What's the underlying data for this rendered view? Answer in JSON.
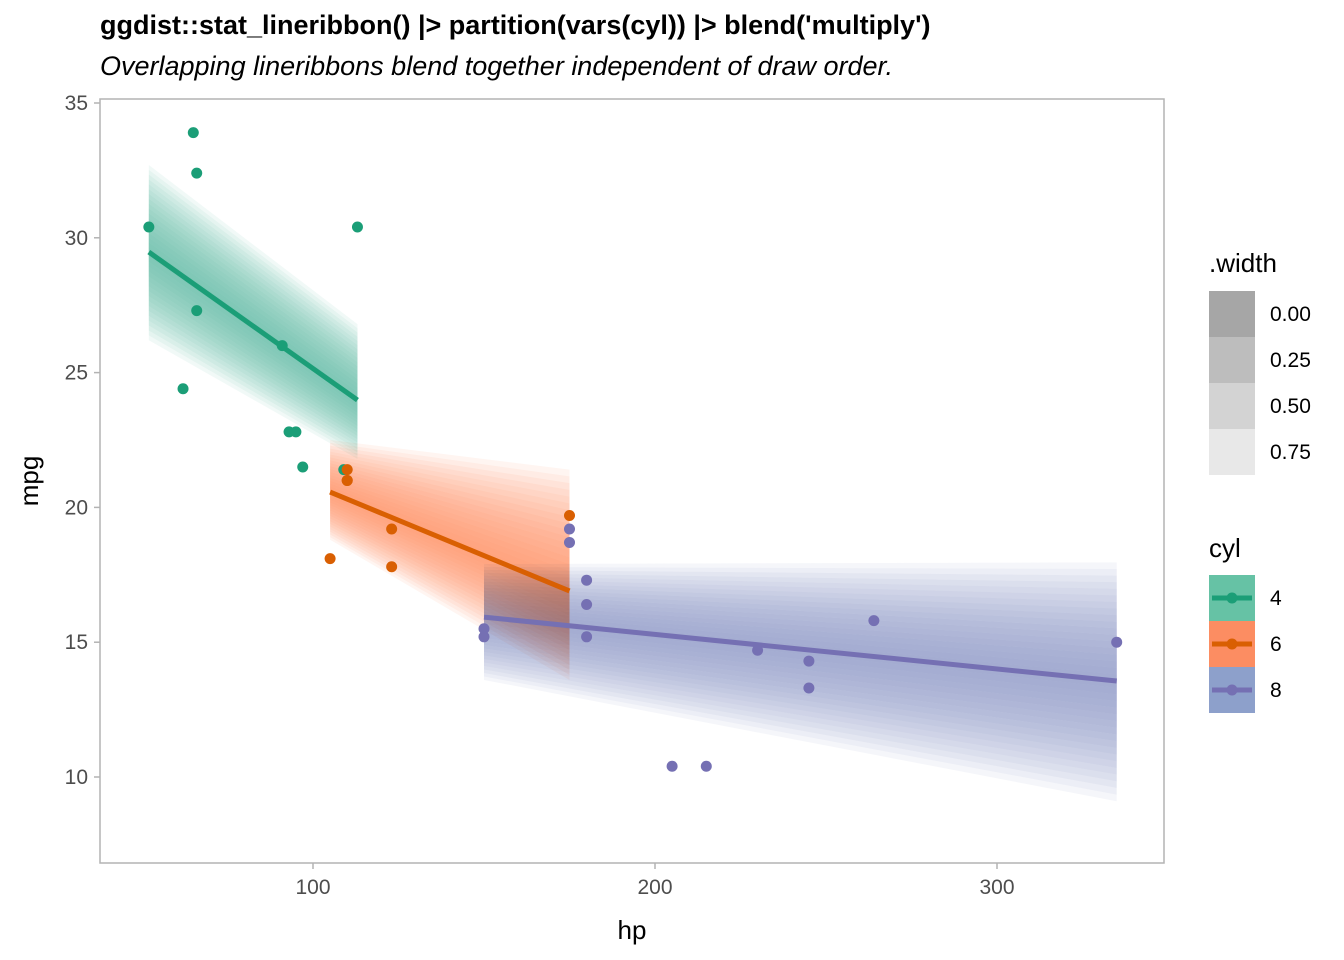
{
  "chart_data": {
    "type": "scatter",
    "title": "ggdist::stat_lineribbon() |> partition(vars(cyl)) |> blend('multiply')",
    "subtitle": "Overlapping lineribbons blend together independent of draw order.",
    "xlabel": "hp",
    "ylabel": "mpg",
    "xlim": [
      37.7,
      348.8
    ],
    "ylim": [
      6.8,
      35.15
    ],
    "xticks": [
      "100",
      "200",
      "300"
    ],
    "yticks": [
      "10",
      "15",
      "20",
      "25",
      "30",
      "35"
    ],
    "grid": false,
    "legend_placement": "right",
    "legend_width": {
      "title": ".width",
      "entries": [
        {
          "label": "0.00",
          "color": "#a6a6a6"
        },
        {
          "label": "0.25",
          "color": "#bdbdbd"
        },
        {
          "label": "0.50",
          "color": "#d3d3d3"
        },
        {
          "label": "0.75",
          "color": "#e8e8e8"
        }
      ]
    },
    "legend_cyl": {
      "title": "cyl",
      "entries": [
        {
          "label": "4",
          "fill": "#66c2a5",
          "line": "#1b9e77"
        },
        {
          "label": "6",
          "fill": "#fc8d62",
          "line": "#d95f02"
        },
        {
          "label": "8",
          "fill": "#8da0cb",
          "line": "#7570b3"
        }
      ]
    },
    "series": [
      {
        "name": "4",
        "color": "#1b9e77",
        "fill": "#66c2a5",
        "points": [
          [
            93,
            22.8
          ],
          [
            62,
            24.4
          ],
          [
            95,
            22.8
          ],
          [
            66,
            32.4
          ],
          [
            52,
            30.4
          ],
          [
            65,
            33.9
          ],
          [
            97,
            21.5
          ],
          [
            66,
            27.3
          ],
          [
            91,
            26.0
          ],
          [
            113,
            30.4
          ],
          [
            109,
            21.4
          ]
        ],
        "line": {
          "x": [
            52,
            113
          ],
          "y": [
            29.47,
            23.98
          ]
        },
        "ribbon": {
          "x": [
            52,
            113
          ],
          "lower": [
            26.2,
            21.8
          ],
          "upper": [
            32.7,
            26.8
          ]
        }
      },
      {
        "name": "6",
        "color": "#d95f02",
        "fill": "#fc8d62",
        "points": [
          [
            110,
            21.0
          ],
          [
            110,
            21.0
          ],
          [
            110,
            21.4
          ],
          [
            105,
            18.1
          ],
          [
            123,
            19.2
          ],
          [
            123,
            17.8
          ],
          [
            175,
            19.7
          ]
        ],
        "line": {
          "x": [
            105,
            175
          ],
          "y": [
            20.57,
            16.9
          ]
        },
        "ribbon": {
          "x": [
            105,
            175
          ],
          "lower": [
            18.8,
            13.6
          ],
          "upper": [
            22.5,
            21.4
          ]
        }
      },
      {
        "name": "8",
        "color": "#7570b3",
        "fill": "#8da0cb",
        "points": [
          [
            175,
            18.7
          ],
          [
            245,
            14.3
          ],
          [
            180,
            16.4
          ],
          [
            180,
            17.3
          ],
          [
            180,
            15.2
          ],
          [
            205,
            10.4
          ],
          [
            215,
            10.4
          ],
          [
            230,
            14.7
          ],
          [
            150,
            15.5
          ],
          [
            150,
            15.2
          ],
          [
            245,
            13.3
          ],
          [
            175,
            19.2
          ],
          [
            264,
            15.8
          ],
          [
            335,
            15.0
          ]
        ],
        "line": {
          "x": [
            150,
            335
          ],
          "y": [
            15.93,
            13.56
          ]
        },
        "ribbon": {
          "x": [
            150,
            335
          ],
          "lower": [
            13.6,
            9.1
          ],
          "upper": [
            17.9,
            17.96
          ]
        }
      }
    ]
  }
}
